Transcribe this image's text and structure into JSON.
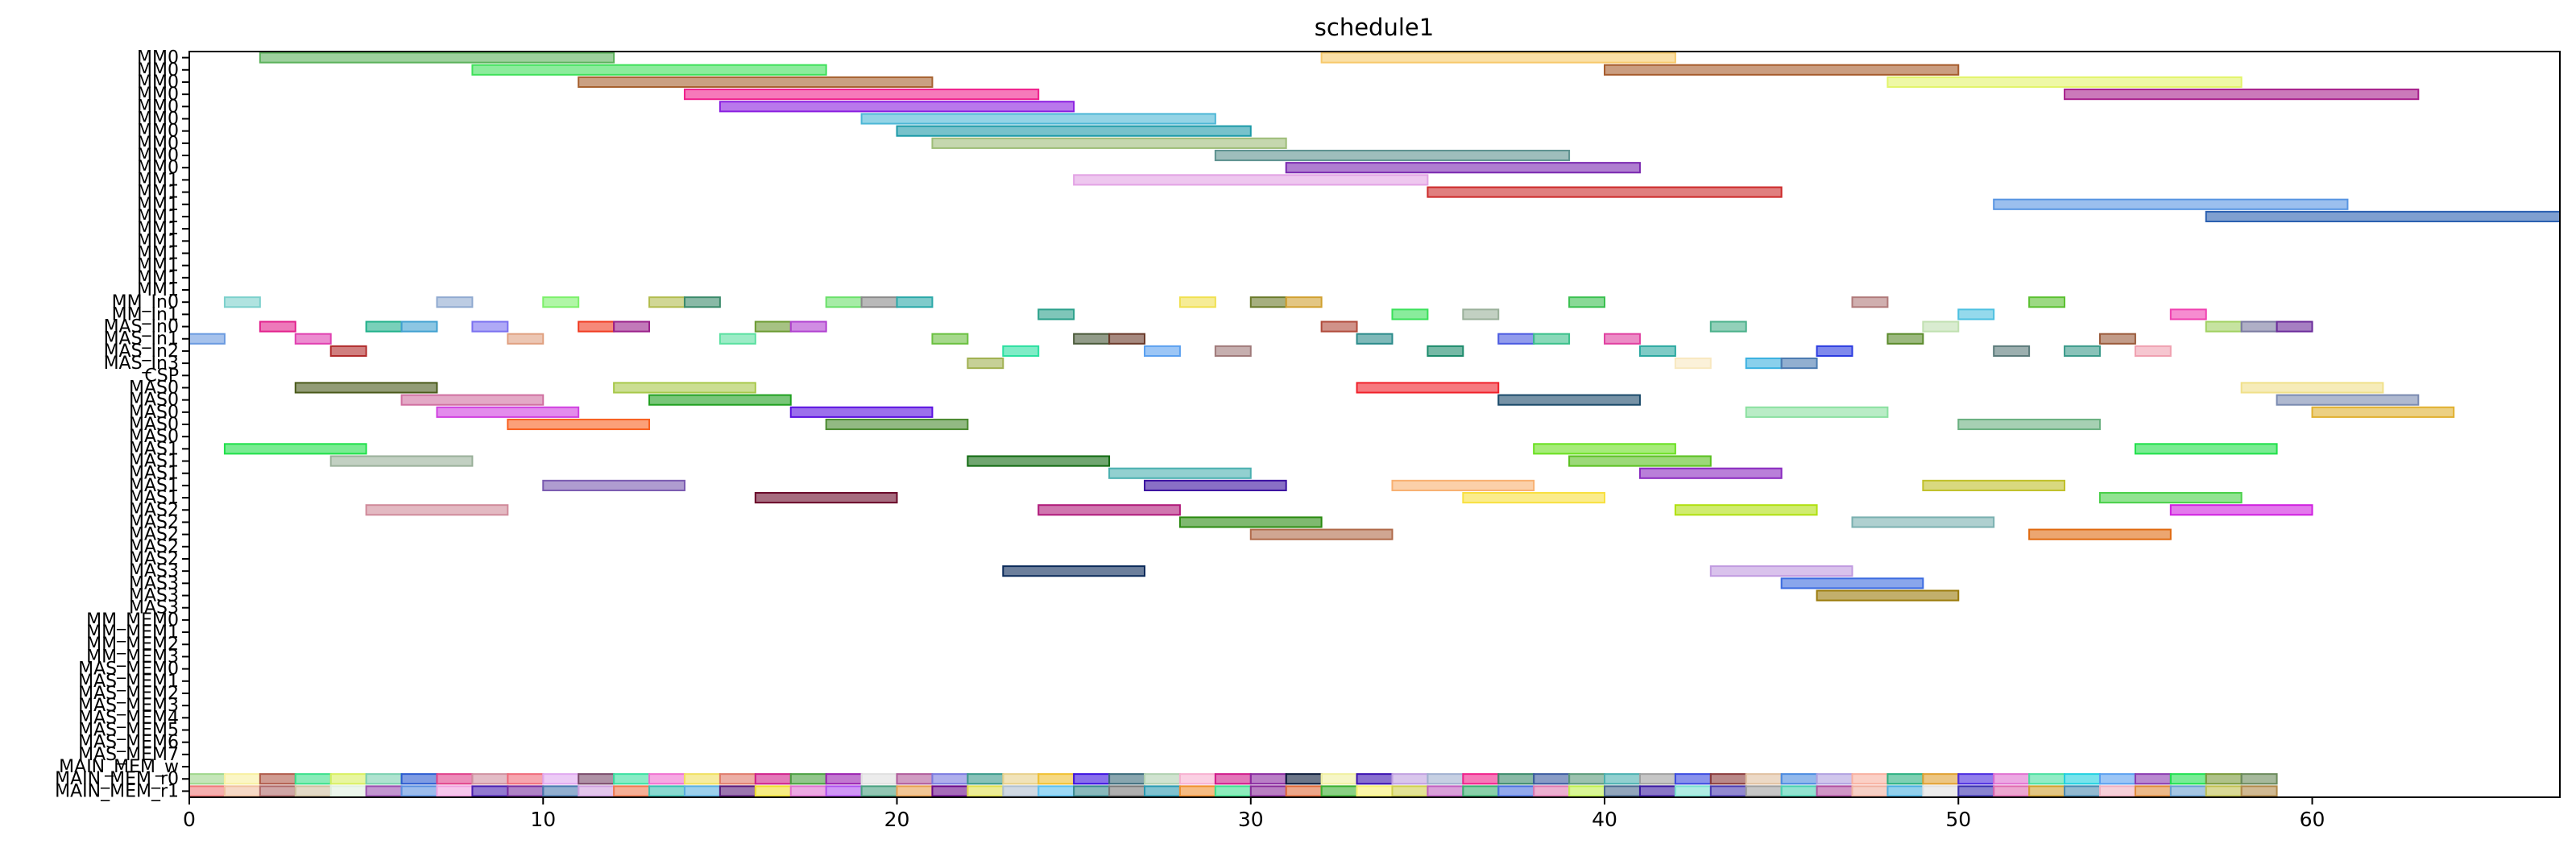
{
  "chart_data": {
    "type": "gantt",
    "title": "schedule1",
    "xlabel": "",
    "ylabel": "",
    "xlim": [
      0,
      67
    ],
    "x_ticks": [
      0,
      10,
      20,
      30,
      40,
      50,
      60
    ],
    "rows": [
      "MM0",
      "MM0",
      "MM0",
      "MM0",
      "MM0",
      "MM0",
      "MM0",
      "MM0",
      "MM0",
      "MM0",
      "MM1",
      "MM1",
      "MM1",
      "MM1",
      "MM1",
      "MM1",
      "MM1",
      "MM1",
      "MM1",
      "MM1",
      "MM_In0",
      "MM_In1",
      "MAS_In0",
      "MAS_In1",
      "MAS_In2",
      "MAS_In3",
      "CSP",
      "MAS0",
      "MAS0",
      "MAS0",
      "MAS0",
      "MAS0",
      "MAS1",
      "MAS1",
      "MAS1",
      "MAS1",
      "MAS1",
      "MAS2",
      "MAS2",
      "MAS2",
      "MAS2",
      "MAS2",
      "MAS3",
      "MAS3",
      "MAS3",
      "MAS3",
      "MM_MEM0",
      "MM_MEM1",
      "MM_MEM2",
      "MM_MEM3",
      "MAS_MEM0",
      "MAS_MEM1",
      "MAS_MEM2",
      "MAS_MEM3",
      "MAS_MEM4",
      "MAS_MEM5",
      "MAS_MEM6",
      "MAS_MEM7",
      "MAIN_MEM_w",
      "MAIN_MEM_r0",
      "MAIN_MEM_r1"
    ],
    "tasks": [
      {
        "row": 0,
        "start": 2,
        "end": 12,
        "color": "#5bb15b"
      },
      {
        "row": 0,
        "start": 32,
        "end": 42,
        "color": "#f7c96b"
      },
      {
        "row": 1,
        "start": 8,
        "end": 18,
        "color": "#3fe05a"
      },
      {
        "row": 1,
        "start": 40,
        "end": 50,
        "color": "#a65b2c"
      },
      {
        "row": 2,
        "start": 11,
        "end": 21,
        "color": "#a6612e"
      },
      {
        "row": 2,
        "start": 48,
        "end": 58,
        "color": "#e2f46a"
      },
      {
        "row": 3,
        "start": 14,
        "end": 24,
        "color": "#f0208c"
      },
      {
        "row": 3,
        "start": 53,
        "end": 63,
        "color": "#a8208c"
      },
      {
        "row": 4,
        "start": 15,
        "end": 25,
        "color": "#8a1ee0"
      },
      {
        "row": 5,
        "start": 19,
        "end": 29,
        "color": "#4cb7d6"
      },
      {
        "row": 6,
        "start": 20,
        "end": 30,
        "color": "#1c9aa8"
      },
      {
        "row": 7,
        "start": 21,
        "end": 31,
        "color": "#9ebd78"
      },
      {
        "row": 8,
        "start": 29,
        "end": 39,
        "color": "#5e9290"
      },
      {
        "row": 9,
        "start": 31,
        "end": 41,
        "color": "#7a28b0"
      },
      {
        "row": 10,
        "start": 25,
        "end": 35,
        "color": "#e2a2e4"
      },
      {
        "row": 11,
        "start": 35,
        "end": 45,
        "color": "#cc2a2a"
      },
      {
        "row": 12,
        "start": 51,
        "end": 61,
        "color": "#5895e2"
      },
      {
        "row": 13,
        "start": 57,
        "end": 67,
        "color": "#2a5fb0"
      },
      {
        "row": 20,
        "start": 1,
        "end": 2,
        "color": "#7cd0cc"
      },
      {
        "row": 20,
        "start": 7,
        "end": 8,
        "color": "#90aad0"
      },
      {
        "row": 20,
        "start": 10,
        "end": 11,
        "color": "#7cf06a"
      },
      {
        "row": 20,
        "start": 13,
        "end": 14,
        "color": "#b2bc4e"
      },
      {
        "row": 20,
        "start": 14,
        "end": 15,
        "color": "#3a8a6a"
      },
      {
        "row": 20,
        "start": 18,
        "end": 19,
        "color": "#6ae06a"
      },
      {
        "row": 20,
        "start": 19,
        "end": 20,
        "color": "#8a8a8a"
      },
      {
        "row": 20,
        "start": 20,
        "end": 21,
        "color": "#2aa8a8"
      },
      {
        "row": 20,
        "start": 28,
        "end": 29,
        "color": "#f0e050"
      },
      {
        "row": 20,
        "start": 30,
        "end": 31,
        "color": "#6a7a2a"
      },
      {
        "row": 20,
        "start": 31,
        "end": 32,
        "color": "#d0a030"
      },
      {
        "row": 20,
        "start": 39,
        "end": 40,
        "color": "#3ac050"
      },
      {
        "row": 20,
        "start": 47,
        "end": 48,
        "color": "#b07a7a"
      },
      {
        "row": 20,
        "start": 52,
        "end": 53,
        "color": "#5ac030"
      },
      {
        "row": 21,
        "start": 24,
        "end": 25,
        "color": "#2aa08a"
      },
      {
        "row": 21,
        "start": 34,
        "end": 35,
        "color": "#3ae05a"
      },
      {
        "row": 21,
        "start": 36,
        "end": 37,
        "color": "#9ab09a"
      },
      {
        "row": 21,
        "start": 50,
        "end": 51,
        "color": "#4cc0e0"
      },
      {
        "row": 21,
        "start": 56,
        "end": 57,
        "color": "#f040b0"
      },
      {
        "row": 22,
        "start": 2,
        "end": 3,
        "color": "#e2208c"
      },
      {
        "row": 22,
        "start": 5,
        "end": 6,
        "color": "#20b08a"
      },
      {
        "row": 22,
        "start": 6,
        "end": 7,
        "color": "#40a0d0"
      },
      {
        "row": 22,
        "start": 8,
        "end": 9,
        "color": "#7a70f0"
      },
      {
        "row": 22,
        "start": 11,
        "end": 12,
        "color": "#f03a20"
      },
      {
        "row": 22,
        "start": 12,
        "end": 13,
        "color": "#9a208a"
      },
      {
        "row": 22,
        "start": 16,
        "end": 17,
        "color": "#6a9a30"
      },
      {
        "row": 22,
        "start": 17,
        "end": 18,
        "color": "#b040d0"
      },
      {
        "row": 22,
        "start": 32,
        "end": 33,
        "color": "#b04a3a"
      },
      {
        "row": 22,
        "start": 43,
        "end": 44,
        "color": "#4ab08a"
      },
      {
        "row": 22,
        "start": 49,
        "end": 50,
        "color": "#c0e0b0"
      },
      {
        "row": 22,
        "start": 57,
        "end": 58,
        "color": "#a0d060"
      },
      {
        "row": 22,
        "start": 58,
        "end": 59,
        "color": "#7a7aa0"
      },
      {
        "row": 22,
        "start": 59,
        "end": 60,
        "color": "#6a2a9a"
      },
      {
        "row": 23,
        "start": 0,
        "end": 1,
        "color": "#6a9ae0"
      },
      {
        "row": 23,
        "start": 3,
        "end": 4,
        "color": "#e040b0"
      },
      {
        "row": 23,
        "start": 9,
        "end": 10,
        "color": "#e0a080"
      },
      {
        "row": 23,
        "start": 15,
        "end": 16,
        "color": "#5ae0a0"
      },
      {
        "row": 23,
        "start": 21,
        "end": 22,
        "color": "#6ac040"
      },
      {
        "row": 23,
        "start": 25,
        "end": 26,
        "color": "#4a5a3a"
      },
      {
        "row": 23,
        "start": 26,
        "end": 27,
        "color": "#6a3a2a"
      },
      {
        "row": 23,
        "start": 33,
        "end": 34,
        "color": "#2a8a8a"
      },
      {
        "row": 23,
        "start": 37,
        "end": 38,
        "color": "#4a5ae0"
      },
      {
        "row": 23,
        "start": 38,
        "end": 39,
        "color": "#3ac08a"
      },
      {
        "row": 23,
        "start": 40,
        "end": 41,
        "color": "#e040a0"
      },
      {
        "row": 23,
        "start": 48,
        "end": 49,
        "color": "#5a8a2a"
      },
      {
        "row": 23,
        "start": 54,
        "end": 55,
        "color": "#9a5a3a"
      },
      {
        "row": 24,
        "start": 4,
        "end": 5,
        "color": "#b02a2a"
      },
      {
        "row": 24,
        "start": 23,
        "end": 24,
        "color": "#2ae0a0"
      },
      {
        "row": 24,
        "start": 27,
        "end": 28,
        "color": "#5aa0f0"
      },
      {
        "row": 24,
        "start": 29,
        "end": 30,
        "color": "#a07a7a"
      },
      {
        "row": 24,
        "start": 35,
        "end": 36,
        "color": "#1a8a6a"
      },
      {
        "row": 24,
        "start": 41,
        "end": 42,
        "color": "#2aa8a0"
      },
      {
        "row": 24,
        "start": 46,
        "end": 47,
        "color": "#2a3ae0"
      },
      {
        "row": 24,
        "start": 51,
        "end": 52,
        "color": "#5a7a7a"
      },
      {
        "row": 24,
        "start": 53,
        "end": 54,
        "color": "#3a9a8a"
      },
      {
        "row": 24,
        "start": 55,
        "end": 56,
        "color": "#f0a0b0"
      },
      {
        "row": 25,
        "start": 22,
        "end": 23,
        "color": "#a0b050"
      },
      {
        "row": 25,
        "start": 42,
        "end": 43,
        "color": "#f8e8c0"
      },
      {
        "row": 25,
        "start": 44,
        "end": 45,
        "color": "#3ab0e0"
      },
      {
        "row": 25,
        "start": 45,
        "end": 46,
        "color": "#4a7ab0"
      },
      {
        "row": 27,
        "start": 3,
        "end": 7,
        "color": "#4a5a1a"
      },
      {
        "row": 27,
        "start": 12,
        "end": 16,
        "color": "#a8c84a"
      },
      {
        "row": 27,
        "start": 33,
        "end": 37,
        "color": "#f0202a"
      },
      {
        "row": 27,
        "start": 58,
        "end": 62,
        "color": "#f0e08a"
      },
      {
        "row": 28,
        "start": 6,
        "end": 10,
        "color": "#d070a0"
      },
      {
        "row": 28,
        "start": 13,
        "end": 17,
        "color": "#20a020"
      },
      {
        "row": 28,
        "start": 37,
        "end": 41,
        "color": "#1a4a6a"
      },
      {
        "row": 28,
        "start": 59,
        "end": 63,
        "color": "#7a8ab0"
      },
      {
        "row": 29,
        "start": 7,
        "end": 11,
        "color": "#d040e0"
      },
      {
        "row": 29,
        "start": 17,
        "end": 21,
        "color": "#5a10e0"
      },
      {
        "row": 29,
        "start": 44,
        "end": 48,
        "color": "#8ae0a0"
      },
      {
        "row": 29,
        "start": 60,
        "end": 64,
        "color": "#e0b030"
      },
      {
        "row": 30,
        "start": 9,
        "end": 13,
        "color": "#f86020"
      },
      {
        "row": 30,
        "start": 18,
        "end": 22,
        "color": "#4a8a30"
      },
      {
        "row": 30,
        "start": 50,
        "end": 54,
        "color": "#6ab080"
      },
      {
        "row": 32,
        "start": 1,
        "end": 5,
        "color": "#20e04a"
      },
      {
        "row": 32,
        "start": 38,
        "end": 42,
        "color": "#6ae020"
      },
      {
        "row": 32,
        "start": 55,
        "end": 59,
        "color": "#20e04a"
      },
      {
        "row": 33,
        "start": 4,
        "end": 8,
        "color": "#9ab09a"
      },
      {
        "row": 33,
        "start": 22,
        "end": 26,
        "color": "#106a10"
      },
      {
        "row": 33,
        "start": 39,
        "end": 43,
        "color": "#5ac020"
      },
      {
        "row": 34,
        "start": 26,
        "end": 30,
        "color": "#4ab0b0"
      },
      {
        "row": 34,
        "start": 41,
        "end": 45,
        "color": "#8a2ac0"
      },
      {
        "row": 35,
        "start": 10,
        "end": 14,
        "color": "#7a5ab0"
      },
      {
        "row": 35,
        "start": 27,
        "end": 31,
        "color": "#3a10a0"
      },
      {
        "row": 35,
        "start": 34,
        "end": 38,
        "color": "#f8b070"
      },
      {
        "row": 35,
        "start": 49,
        "end": 53,
        "color": "#c0c02a"
      },
      {
        "row": 36,
        "start": 16,
        "end": 20,
        "color": "#6a0a2a"
      },
      {
        "row": 36,
        "start": 36,
        "end": 40,
        "color": "#f8e040"
      },
      {
        "row": 36,
        "start": 54,
        "end": 58,
        "color": "#4ad04a"
      },
      {
        "row": 37,
        "start": 5,
        "end": 9,
        "color": "#d08a9a"
      },
      {
        "row": 37,
        "start": 24,
        "end": 28,
        "color": "#b01a7a"
      },
      {
        "row": 37,
        "start": 42,
        "end": 46,
        "color": "#b0e010"
      },
      {
        "row": 37,
        "start": 56,
        "end": 60,
        "color": "#d020e0"
      },
      {
        "row": 38,
        "start": 28,
        "end": 32,
        "color": "#2a8a10"
      },
      {
        "row": 38,
        "start": 47,
        "end": 51,
        "color": "#7ab0b0"
      },
      {
        "row": 39,
        "start": 30,
        "end": 34,
        "color": "#b06a4a"
      },
      {
        "row": 39,
        "start": 52,
        "end": 56,
        "color": "#e06a10"
      },
      {
        "row": 42,
        "start": 23,
        "end": 27,
        "color": "#0a2a5a"
      },
      {
        "row": 42,
        "start": 43,
        "end": 47,
        "color": "#c09ae0"
      },
      {
        "row": 43,
        "start": 45,
        "end": 49,
        "color": "#3a6ae0"
      },
      {
        "row": 44,
        "start": 46,
        "end": 50,
        "color": "#9a7a0a"
      }
    ],
    "mem_r0_colors": [
      "#9ed68a",
      "#f8f0a0",
      "#b05a4a",
      "#3ae08a",
      "#d8f060",
      "#7ad0b0",
      "#2a5ad0",
      "#e0408a",
      "#d090a0",
      "#f06a7a",
      "#e0a8f0",
      "#7a4a6a",
      "#3ae0a0",
      "#f070d0",
      "#f0e060",
      "#e07a6a",
      "#d0208a",
      "#4aa040",
      "#9a20b0",
      "#e0e0e0",
      "#b05a9a",
      "#7a7ae0",
      "#3a9a8a",
      "#e8d08a",
      "#f0c030",
      "#3a10e0",
      "#3a6a7a",
      "#b0d0b0",
      "#f8b0d0",
      "#d01a8a",
      "#8a2aa0",
      "#0a1a3a",
      "#f0f0a0",
      "#3a10b0",
      "#c0a0e0",
      "#a0b0d0",
      "#f0208a",
      "#3a8a6a",
      "#3a5aa0",
      "#5a9a7a",
      "#4ab0b0",
      "#a0a0a0",
      "#3a4ae0",
      "#8a3a3a",
      "#e0c0a0",
      "#4a8ae0",
      "#b0a0e0",
      "#f8b0a0",
      "#2ab080",
      "#e0a030",
      "#4a2ae0",
      "#e070d0",
      "#4ae0a0",
      "#20d0e0",
      "#5aa0f0",
      "#8a3ab0",
      "#20e050",
      "#7a9a3a",
      "#6a8a5a"
    ],
    "mem_r1_colors": [
      "#f07a7a",
      "#f0c0a0",
      "#b06a6a",
      "#d0c0a0",
      "#e0f0e0",
      "#9a50b0",
      "#5a90e0",
      "#f0a0e0",
      "#4a20b0",
      "#7a30a0",
      "#4a7ab0",
      "#d0a0e0",
      "#f07a50",
      "#3ac0b0",
      "#5ab0e0",
      "#5a1a7a",
      "#f0e030",
      "#e070d0",
      "#b050f0",
      "#4aa080",
      "#e8a050",
      "#6a0a8a",
      "#e0e050",
      "#b0c0d0",
      "#5ac0f0",
      "#3a8a90",
      "#7a7a7a",
      "#2a9ab0",
      "#f09030",
      "#40e090",
      "#8a2a9a",
      "#e06a3a",
      "#3ab030",
      "#f8f070",
      "#d0d050",
      "#c060c0",
      "#3ab070",
      "#4a70e0",
      "#e07ab0",
      "#c0f050",
      "#4a6a90",
      "#3a1aa0",
      "#7ae0d0",
      "#4a3ab0",
      "#a0a0a0",
      "#4ad0b0",
      "#b050a0",
      "#f0b0a0",
      "#4ab0e0",
      "#e0e0e0",
      "#3a30b0",
      "#e06ab0",
      "#d0a030",
      "#4a8ab0",
      "#f0b0c0",
      "#e08a3a",
      "#6aa0d0",
      "#c0c050",
      "#b08a4a"
    ],
    "colors": {
      "grid": "#000000",
      "background": "#ffffff"
    }
  }
}
